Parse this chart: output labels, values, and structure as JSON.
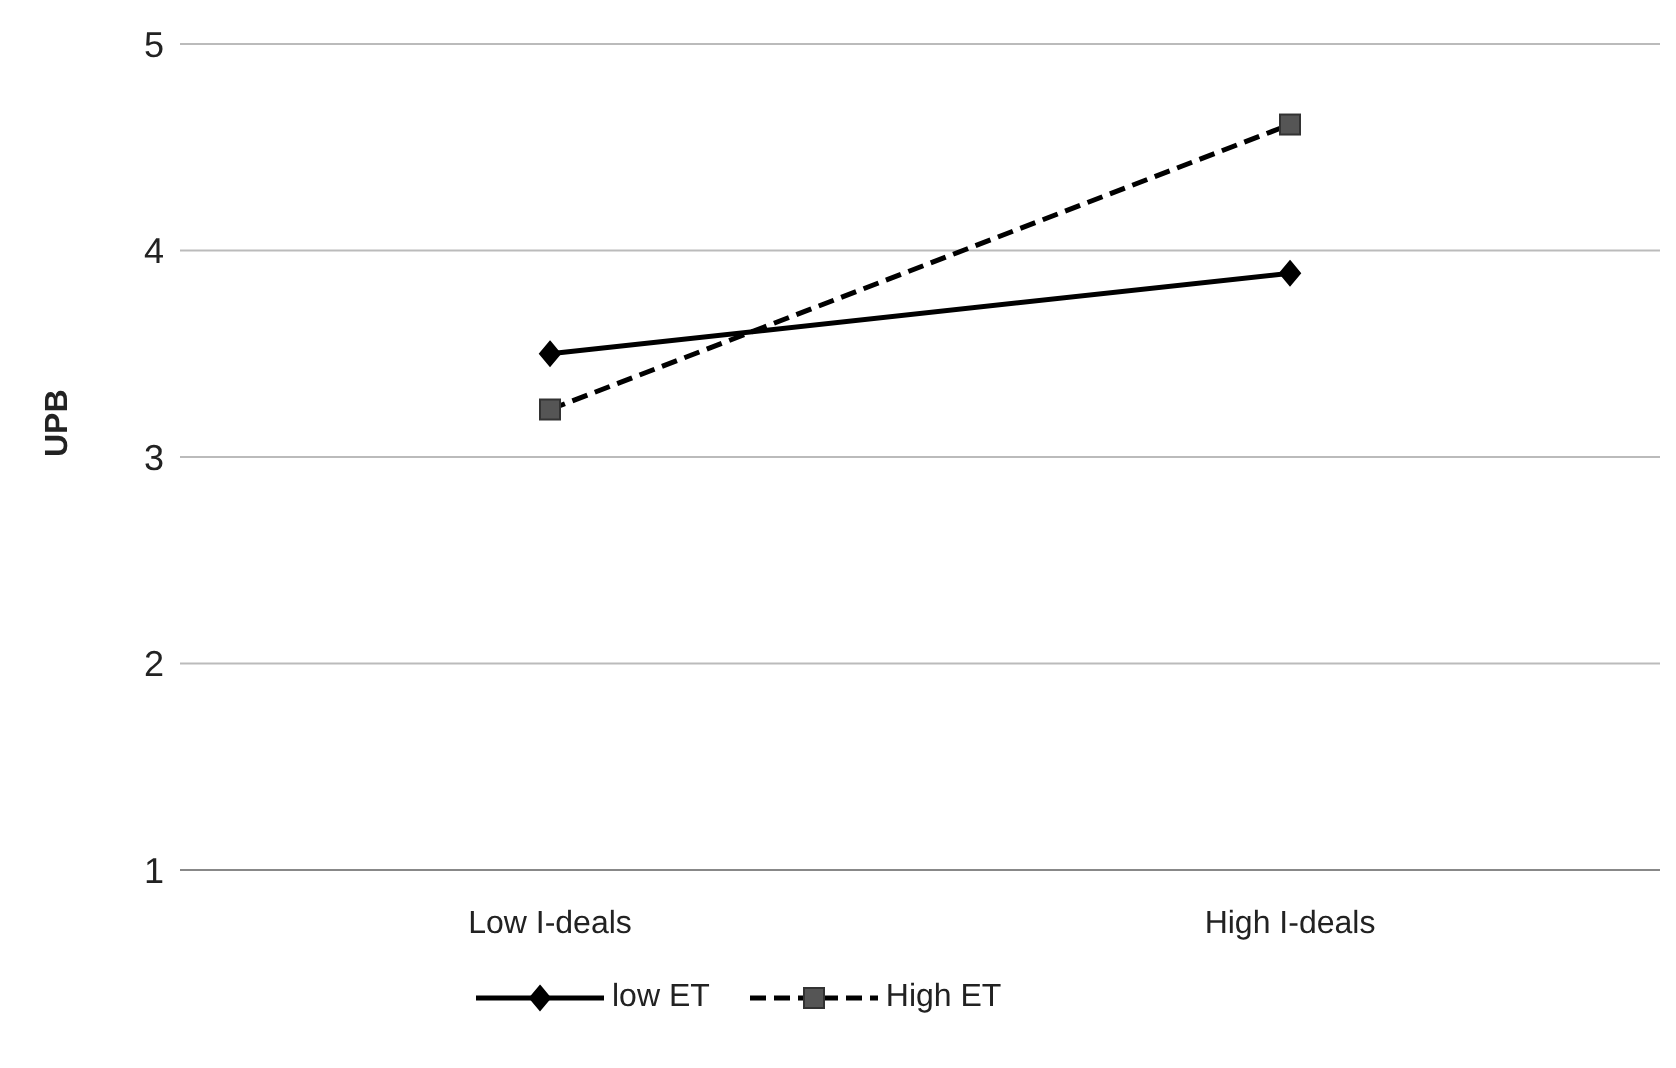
{
  "chart_data": {
    "type": "line",
    "ylabel": "UPB",
    "categories": [
      "Low I-deals",
      "High I-deals"
    ],
    "series": [
      {
        "name": "low ET",
        "color": "#000000",
        "values": [
          3.5,
          3.89
        ],
        "marker": "diamond",
        "line_style": "solid"
      },
      {
        "name": "High ET",
        "color": "#555555",
        "values": [
          3.23,
          4.61
        ],
        "marker": "square",
        "line_style": "dashed"
      }
    ],
    "ylim": [
      1,
      5
    ],
    "yticks": [
      1,
      2,
      3,
      4,
      5
    ],
    "grid": "y",
    "legend": "bottom"
  }
}
